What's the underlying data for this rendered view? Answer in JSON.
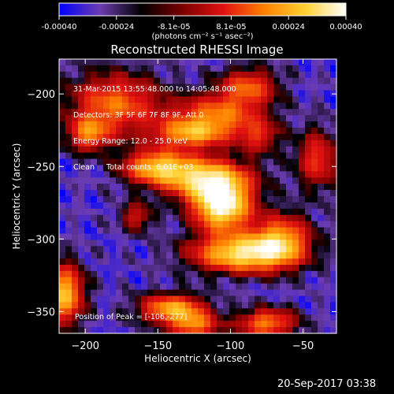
{
  "colorbar": {
    "ticks": [
      "-0.00040",
      "-0.00024",
      "-8.1e-05",
      "8.1e-05",
      "0.00024",
      "0.00040"
    ],
    "range": [
      -0.0004,
      0.0004
    ],
    "units_label": "(photons cm⁻² s⁻¹ asec⁻²)",
    "colormap": [
      "#0000ff",
      "#6c3cb0",
      "#000000",
      "#7a0000",
      "#e01010",
      "#ff8000",
      "#ffd030",
      "#ffffff"
    ]
  },
  "chart_data": {
    "type": "heatmap",
    "title": "Reconstructed RHESSI Image",
    "xlabel": "Heliocentric X (arcsec)",
    "ylabel": "Heliocentric Y (arcsec)",
    "xlim": [
      -218,
      -27
    ],
    "ylim": [
      -365,
      -176
    ],
    "xticks": [
      -200,
      -150,
      -100,
      -50
    ],
    "yticks": [
      -200,
      -250,
      -300,
      -350
    ],
    "x_tick_labels": [
      "−200",
      "−150",
      "−100",
      "−50"
    ],
    "y_tick_labels": [
      "−200",
      "−250",
      "−300",
      "−350"
    ],
    "peak": [
      -106,
      -277
    ],
    "blobs": [
      {
        "x": -106,
        "y": -277,
        "sx": 14,
        "sy": 12,
        "a": 1.0
      },
      {
        "x": -118,
        "y": -258,
        "sx": 22,
        "sy": 10,
        "a": 0.75
      },
      {
        "x": -92,
        "y": -310,
        "sx": 24,
        "sy": 9,
        "a": 0.85
      },
      {
        "x": -65,
        "y": -300,
        "sx": 14,
        "sy": 12,
        "a": 0.6
      },
      {
        "x": -152,
        "y": -250,
        "sx": 16,
        "sy": 8,
        "a": 0.65
      },
      {
        "x": -110,
        "y": -215,
        "sx": 22,
        "sy": 10,
        "a": 0.55
      },
      {
        "x": -88,
        "y": -195,
        "sx": 14,
        "sy": 9,
        "a": 0.5
      },
      {
        "x": -180,
        "y": -207,
        "sx": 22,
        "sy": 15,
        "a": 0.55
      },
      {
        "x": -198,
        "y": -228,
        "sx": 10,
        "sy": 8,
        "a": 0.5
      },
      {
        "x": -214,
        "y": -338,
        "sx": 9,
        "sy": 14,
        "a": 0.75
      },
      {
        "x": -140,
        "y": -348,
        "sx": 16,
        "sy": 7,
        "a": 0.7
      },
      {
        "x": -125,
        "y": -360,
        "sx": 12,
        "sy": 6,
        "a": 0.55
      },
      {
        "x": -75,
        "y": -358,
        "sx": 14,
        "sy": 7,
        "a": 0.6
      },
      {
        "x": -40,
        "y": -245,
        "sx": 10,
        "sy": 14,
        "a": 0.45
      },
      {
        "x": -128,
        "y": -228,
        "sx": 18,
        "sy": 7,
        "a": 0.55
      },
      {
        "x": -165,
        "y": -285,
        "sx": 8,
        "sy": 7,
        "a": 0.35
      },
      {
        "x": -80,
        "y": -230,
        "sx": 10,
        "sy": 8,
        "a": 0.35
      }
    ],
    "annotations": [
      "31-Mar-2015 13:55:48.000 to 14:05:48.000",
      "Detectors: 3F 5F 6F 7F 8F 9F, Att 0",
      "Energy Range: 12.0 - 25.0 keV",
      "Clean     Total counts: 6.01E+03"
    ],
    "peak_label": "Position of Peak = [-106,-277]"
  },
  "footer": {
    "timestamp": "20-Sep-2017 03:38"
  }
}
